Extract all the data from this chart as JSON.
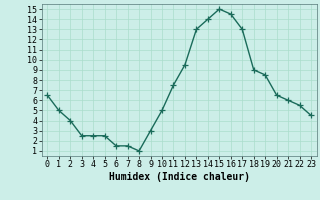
{
  "x": [
    0,
    1,
    2,
    3,
    4,
    5,
    6,
    7,
    8,
    9,
    10,
    11,
    12,
    13,
    14,
    15,
    16,
    17,
    18,
    19,
    20,
    21,
    22,
    23
  ],
  "y": [
    6.5,
    5.0,
    4.0,
    2.5,
    2.5,
    2.5,
    1.5,
    1.5,
    1.0,
    3.0,
    5.0,
    7.5,
    9.5,
    13.0,
    14.0,
    15.0,
    14.5,
    13.0,
    9.0,
    8.5,
    6.5,
    6.0,
    5.5,
    4.5
  ],
  "line_color": "#1a6b5a",
  "bg_color": "#cceee8",
  "grid_color": "#aaddcc",
  "xlabel": "Humidex (Indice chaleur)",
  "ylabel": "",
  "xlim": [
    -0.5,
    23.5
  ],
  "ylim": [
    0.5,
    15.5
  ],
  "yticks": [
    1,
    2,
    3,
    4,
    5,
    6,
    7,
    8,
    9,
    10,
    11,
    12,
    13,
    14,
    15
  ],
  "xticks": [
    0,
    1,
    2,
    3,
    4,
    5,
    6,
    7,
    8,
    9,
    10,
    11,
    12,
    13,
    14,
    15,
    16,
    17,
    18,
    19,
    20,
    21,
    22,
    23
  ],
  "marker": "+",
  "marker_size": 4,
  "line_width": 1.0,
  "xlabel_fontsize": 7,
  "tick_fontsize": 6
}
